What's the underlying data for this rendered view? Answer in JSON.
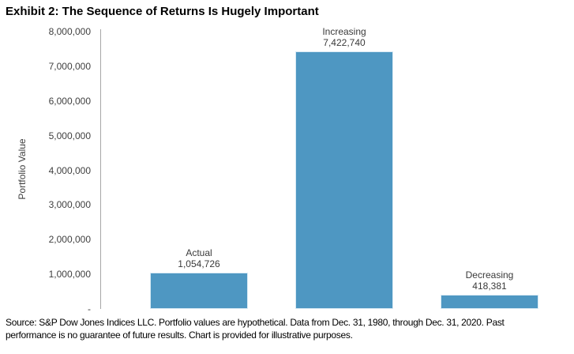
{
  "title": "Exhibit 2: The Sequence of Returns Is Hugely Important",
  "chart_data": {
    "type": "bar",
    "title": "Exhibit 2: The Sequence of Returns Is Hugely Important",
    "categories": [
      "Actual",
      "Increasing",
      "Decreasing"
    ],
    "values": [
      1054726,
      7422740,
      418381
    ],
    "value_labels": [
      "1,054,726",
      "7,422,740",
      "418,381"
    ],
    "xlabel": "",
    "ylabel": "Portfolio Value",
    "ylim": [
      0,
      8000000
    ],
    "grid": false,
    "legend_position": "none",
    "bar_color": "#4E97C2",
    "yticks": [
      {
        "value": 8000000,
        "label": "8,000,000"
      },
      {
        "value": 7000000,
        "label": "7,000,000"
      },
      {
        "value": 6000000,
        "label": "6,000,000"
      },
      {
        "value": 5000000,
        "label": "5,000,000"
      },
      {
        "value": 4000000,
        "label": "4,000,000"
      },
      {
        "value": 3000000,
        "label": "3,000,000"
      },
      {
        "value": 2000000,
        "label": "2,000,000"
      },
      {
        "value": 1000000,
        "label": "1,000,000"
      },
      {
        "value": 0,
        "label": "-"
      }
    ]
  },
  "source": {
    "line1": "Source: S&P Dow Jones Indices LLC. Portfolio values are hypothetical. Data from Dec. 31, 1980, through Dec. 31, 2020. Past",
    "line2": "performance is no guarantee of future results. Chart is provided for illustrative purposes."
  }
}
